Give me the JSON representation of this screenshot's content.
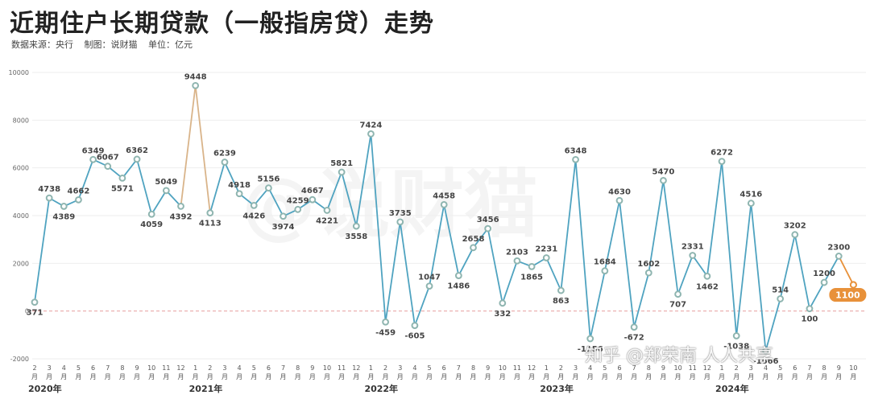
{
  "header": {
    "title": "近期住户长期贷款（一般指房贷）走势",
    "source": "数据来源：央行",
    "maker": "制图：说财猫",
    "unit": "单位：亿元"
  },
  "watermark": "@说财猫",
  "credit": "知乎 @郑荣南 人人共享",
  "colors": {
    "line": "#4fa3c0",
    "marker": "#8fb5b0",
    "highlight": "#e8913a",
    "zero_line": "#e8a0a0"
  },
  "chart_data": {
    "type": "line",
    "title": "近期住户长期贷款（一般指房贷）走势",
    "ylabel": "单位：亿元",
    "ylim": [
      -2000,
      10000
    ],
    "yticks": [
      -2000,
      0,
      2000,
      4000,
      6000,
      8000,
      10000
    ],
    "grid": true,
    "categories": [
      "2月",
      "3月",
      "4月",
      "5月",
      "6月",
      "7月",
      "8月",
      "9月",
      "10月",
      "11月",
      "12月",
      "1月",
      "2月",
      "3月",
      "4月",
      "5月",
      "6月",
      "7月",
      "8月",
      "9月",
      "10月",
      "11月",
      "12月",
      "1月",
      "2月",
      "3月",
      "4月",
      "5月",
      "6月",
      "7月",
      "8月",
      "9月",
      "10月",
      "11月",
      "12月",
      "1月",
      "2月",
      "3月",
      "4月",
      "5月",
      "6月",
      "7月",
      "8月",
      "9月",
      "10月",
      "11月",
      "12月",
      "1月",
      "2月",
      "3月",
      "4月",
      "5月",
      "6月",
      "7月",
      "8月",
      "9月",
      "10月"
    ],
    "years": [
      {
        "label": "2020年",
        "start_index": 0
      },
      {
        "label": "2021年",
        "start_index": 11
      },
      {
        "label": "2022年",
        "start_index": 23
      },
      {
        "label": "2023年",
        "start_index": 35
      },
      {
        "label": "2024年",
        "start_index": 47
      }
    ],
    "series": [
      {
        "values": [
          371,
          4738,
          4389,
          4662,
          6349,
          6067,
          5571,
          6362,
          4059,
          5049,
          4392,
          9448,
          4113,
          6239,
          4918,
          4426,
          5156,
          3974,
          4259,
          4667,
          4221,
          5821,
          3558,
          7424,
          -459,
          3735,
          -605,
          1047,
          4458,
          1486,
          2658,
          3456,
          332,
          2103,
          1865,
          2231,
          863,
          6348,
          -1156,
          1684,
          4630,
          -672,
          1602,
          5470,
          707,
          2331,
          1462,
          6272,
          -1038,
          4516,
          -1666,
          514,
          3202,
          100,
          1200,
          2300,
          1100
        ],
        "labels": [
          "371",
          "4738",
          "4389",
          "4662",
          "6349",
          "6067",
          "5571",
          "6362",
          "4059",
          "5049",
          "4392",
          "9448",
          "4113",
          "6239",
          "4918",
          "4426",
          "5156",
          "3974",
          "4259",
          "4667",
          "4221",
          "5821",
          "3558",
          "7424",
          "-459",
          "3735",
          "-605",
          "1047",
          "4458",
          "1486",
          "2658",
          "3456",
          "332",
          "2103",
          "1865",
          "2231",
          "863",
          "6348",
          "-1156",
          "1684",
          "4630",
          "-672",
          "1602",
          "5470",
          "707",
          "2331",
          "1462",
          "6272",
          "-1038",
          "4516",
          "-1666",
          "514",
          "3202",
          "100",
          "1200",
          "2300",
          "1100"
        ]
      }
    ]
  }
}
